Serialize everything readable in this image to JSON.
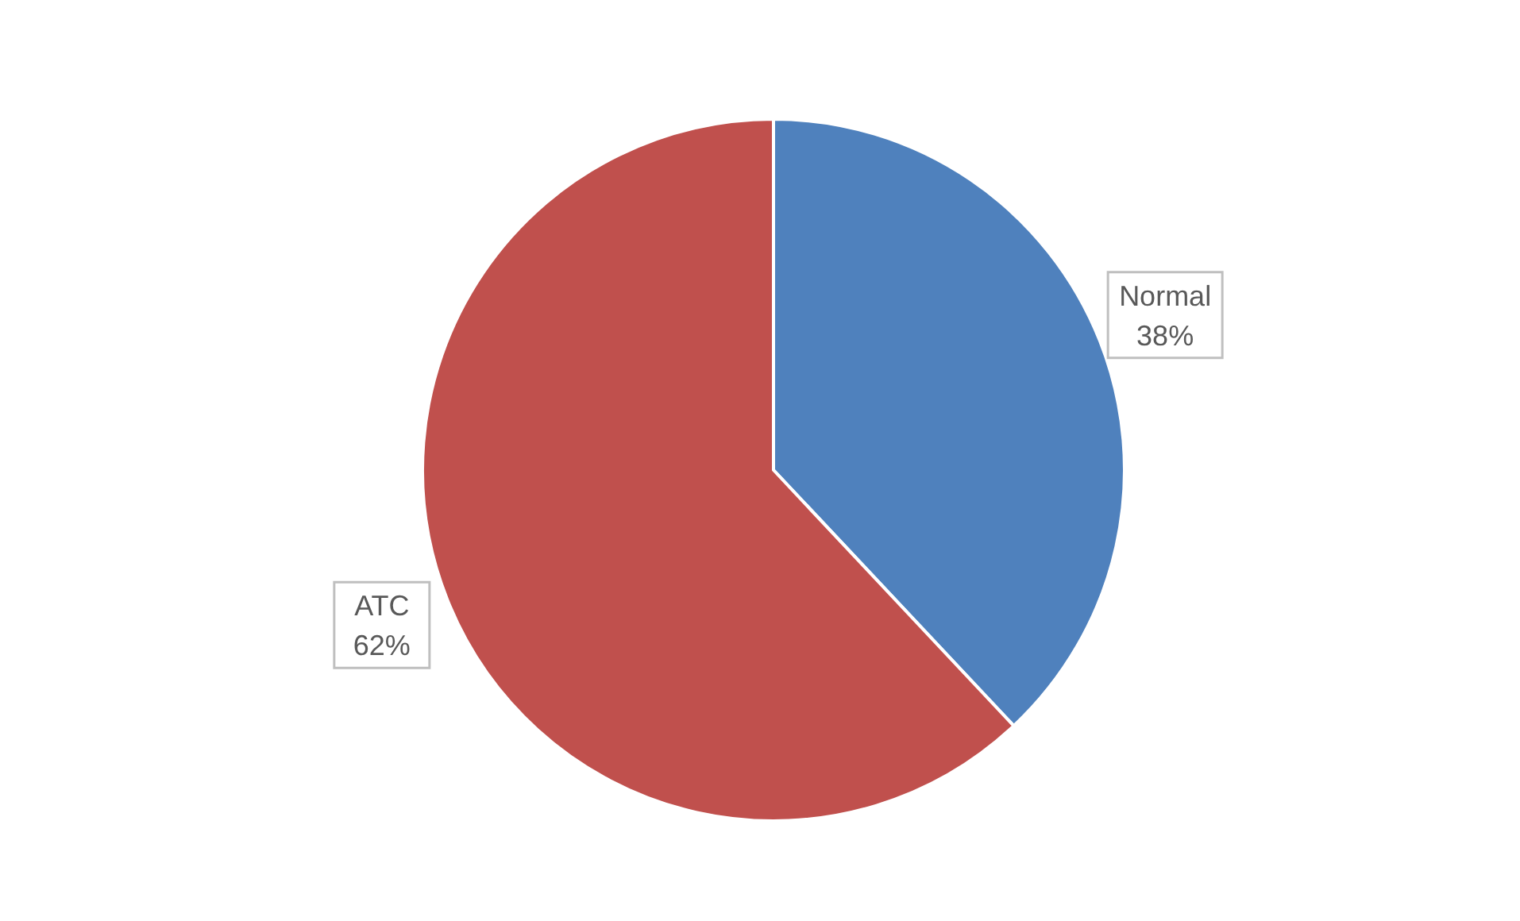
{
  "chart_data": {
    "type": "pie",
    "categories": [
      "Normal",
      "ATC"
    ],
    "values": [
      38,
      62
    ],
    "colors": [
      "#4f81bd",
      "#c0504d"
    ],
    "value_labels": [
      "38%",
      "62%"
    ],
    "legend": false
  }
}
